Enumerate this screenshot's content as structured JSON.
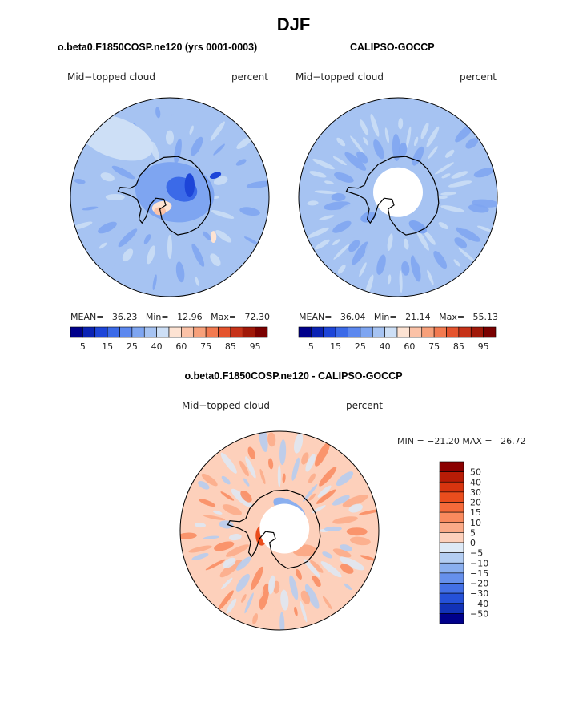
{
  "title": "DJF",
  "panels": {
    "model": {
      "subtitle": "o.beta0.F1850COSP.ne120 (yrs 0001-0003)",
      "left_label": "Mid−topped cloud",
      "right_label": "percent",
      "stats": "MEAN=   36.23   Min=   12.96   Max=   72.30"
    },
    "obs": {
      "subtitle": "CALIPSO-GOCCP",
      "left_label": "Mid−topped cloud",
      "right_label": "percent",
      "stats": "MEAN=   36.04   Min=   21.14   Max=   55.13"
    },
    "diff": {
      "subtitle": "o.beta0.F1850COSP.ne120 - CALIPSO-GOCCP",
      "left_label": "Mid−topped cloud",
      "right_label": "percent",
      "stats": "MIN = −21.20 MAX =   26.72"
    }
  },
  "chart_data": [
    {
      "type": "heatmap",
      "projection": "south-polar-stereographic",
      "title": "o.beta0.F1850COSP.ne120 (yrs 0001-0003)",
      "variable": "Mid-topped cloud",
      "units": "percent",
      "mean": 36.23,
      "min": 12.96,
      "max": 72.3,
      "contour_levels": [
        5,
        10,
        15,
        20,
        25,
        30,
        40,
        50,
        60,
        65,
        75,
        80,
        85,
        90,
        95
      ],
      "colorbar_tick_labels": [
        "5",
        "15",
        "25",
        "40",
        "60",
        "75",
        "85",
        "95"
      ],
      "colors": [
        "#00008b",
        "#0a22b4",
        "#1d45d8",
        "#3b6ae8",
        "#5c88ef",
        "#7ea5f1",
        "#a6c3f2",
        "#cddff6",
        "#fde3d3",
        "#fbc2a7",
        "#f7a07a",
        "#f27a50",
        "#e4532d",
        "#c63218",
        "#a01808",
        "#7a0000"
      ]
    },
    {
      "type": "heatmap",
      "projection": "south-polar-stereographic",
      "title": "CALIPSO-GOCCP",
      "variable": "Mid-topped cloud",
      "units": "percent",
      "mean": 36.04,
      "min": 21.14,
      "max": 55.13,
      "contour_levels": [
        5,
        10,
        15,
        20,
        25,
        30,
        40,
        50,
        60,
        65,
        75,
        80,
        85,
        90,
        95
      ],
      "colorbar_tick_labels": [
        "5",
        "15",
        "25",
        "40",
        "60",
        "75",
        "85",
        "95"
      ],
      "colors": [
        "#00008b",
        "#0a22b4",
        "#1d45d8",
        "#3b6ae8",
        "#5c88ef",
        "#7ea5f1",
        "#a6c3f2",
        "#cddff6",
        "#fde3d3",
        "#fbc2a7",
        "#f7a07a",
        "#f27a50",
        "#e4532d",
        "#c63218",
        "#a01808",
        "#7a0000"
      ]
    },
    {
      "type": "heatmap",
      "projection": "south-polar-stereographic",
      "title": "o.beta0.F1850COSP.ne120 - CALIPSO-GOCCP",
      "variable": "Mid-topped cloud",
      "units": "percent",
      "min": -21.2,
      "max": 26.72,
      "contour_levels": [
        50,
        40,
        30,
        20,
        15,
        10,
        5,
        0,
        -5,
        -10,
        -15,
        -20,
        -30,
        -40,
        -50
      ],
      "colorbar_tick_labels": [
        "50",
        "40",
        "30",
        "20",
        "15",
        "10",
        "5",
        "0",
        "−5",
        "−10",
        "−15",
        "−20",
        "−30",
        "−40",
        "−50"
      ],
      "colors": [
        "#8b0000",
        "#b81c06",
        "#d7340f",
        "#ea4d1d",
        "#f56a3a",
        "#f98a5e",
        "#fbaa87",
        "#fdd0bb",
        "#dde9f6",
        "#b3cdf2",
        "#8aafef",
        "#6690ec",
        "#4370e6",
        "#2551d8",
        "#1232b7",
        "#00008b"
      ]
    }
  ]
}
